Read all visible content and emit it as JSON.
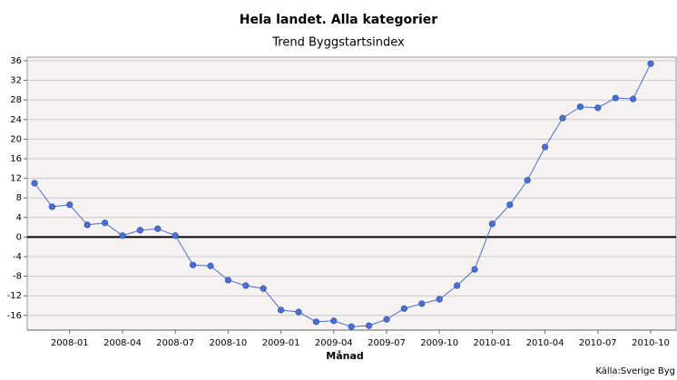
{
  "chart_data": {
    "type": "line",
    "title": "Hela landet. Alla kategorier",
    "subtitle": "Trend Byggstartsindex",
    "x_label": "Månad",
    "source": "Källa:Sverige Byg",
    "categories": [
      null,
      null,
      "2008-01",
      null,
      null,
      "2008-04",
      null,
      null,
      "2008-07",
      null,
      null,
      "2008-10",
      null,
      null,
      "2009-01",
      null,
      null,
      "2009-04",
      null,
      null,
      "2009-07",
      null,
      null,
      "2009-10",
      null,
      null,
      "2010-01",
      null,
      null,
      "2010-04",
      null,
      null,
      "2010-07",
      null,
      null,
      "2010-10"
    ],
    "series": [
      {
        "color": "#4a6fd0",
        "values": [
          11.0,
          6.2,
          6.6,
          2.5,
          2.9,
          0.3,
          1.4,
          1.7,
          0.3,
          -5.7,
          -5.9,
          -8.8,
          -9.9,
          -10.5,
          -14.9,
          -15.3,
          -17.3,
          -17.1,
          -18.3,
          -18.1,
          -16.8,
          -14.6,
          -13.6,
          -12.7,
          -9.9,
          -6.6,
          2.7,
          6.6,
          11.6,
          18.4,
          24.3,
          26.6,
          26.4,
          28.4,
          28.2,
          35.4
        ]
      }
    ],
    "ylim": [
      -19,
      36
    ],
    "yticks": [
      -16,
      -12,
      -8,
      -4,
      0,
      4,
      8,
      12,
      16,
      20,
      24,
      28,
      32,
      36
    ],
    "zero_line": 0,
    "grid": true
  }
}
